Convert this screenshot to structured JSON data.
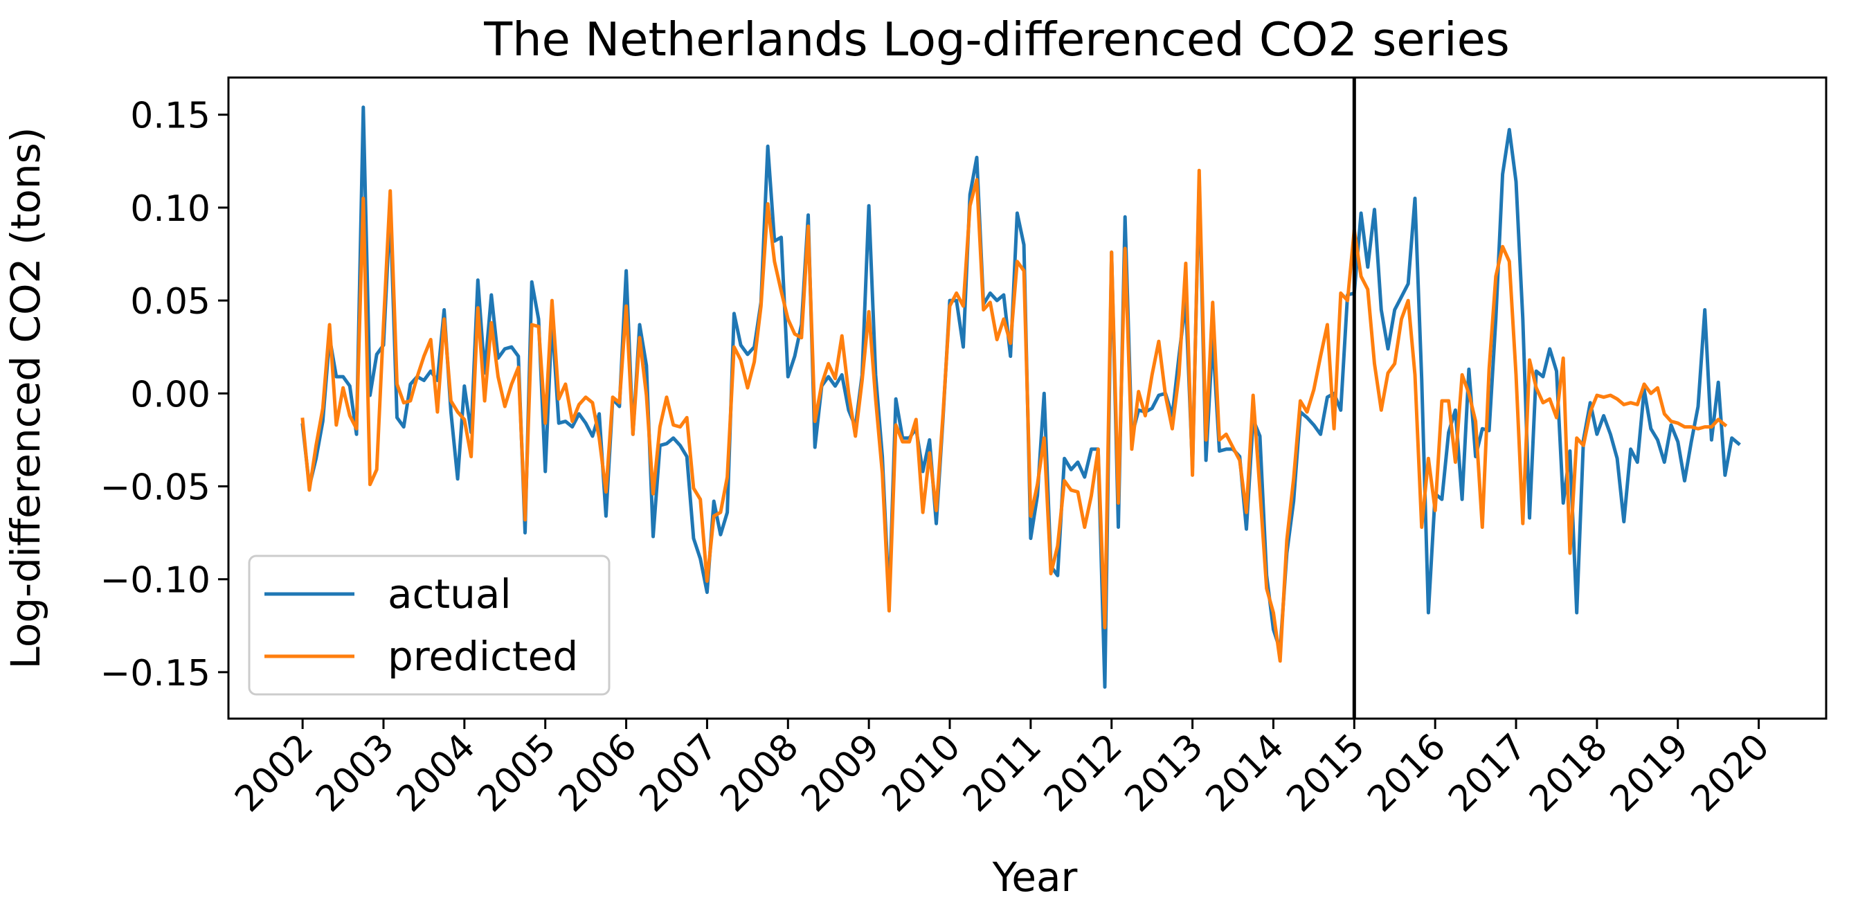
{
  "chart_data": {
    "type": "line",
    "title": "The Netherlands Log-differenced CO2 series",
    "xlabel": "Year",
    "ylabel": "Log-differenced CO2 (tons)",
    "x_start": "2002-01",
    "x_frequency": "monthly",
    "x_ticks": [
      "2002",
      "2003",
      "2004",
      "2005",
      "2006",
      "2007",
      "2008",
      "2009",
      "2010",
      "2011",
      "2012",
      "2013",
      "2014",
      "2015",
      "2016",
      "2017",
      "2018",
      "2019",
      "2020"
    ],
    "xlim": [
      "2001-02",
      "2020-11"
    ],
    "y_ticks": [
      {
        "value": 0.15,
        "label": "0.15"
      },
      {
        "value": 0.1,
        "label": "0.10"
      },
      {
        "value": 0.05,
        "label": "0.05"
      },
      {
        "value": 0.0,
        "label": "0.00"
      },
      {
        "value": -0.05,
        "label": "−0.05"
      },
      {
        "value": -0.1,
        "label": "−0.10"
      },
      {
        "value": -0.15,
        "label": "−0.15"
      }
    ],
    "ylim": [
      -0.175,
      0.17
    ],
    "grid": false,
    "legend_position": "lower-left",
    "vertical_line": {
      "x": "2015-01",
      "color": "#000000"
    },
    "series": [
      {
        "name": "actual",
        "color": "#1f77b4",
        "values": [
          -0.017,
          -0.05,
          -0.035,
          -0.015,
          0.03,
          0.009,
          0.009,
          0.004,
          -0.022,
          0.154,
          -0.001,
          0.021,
          0.026,
          0.099,
          -0.013,
          -0.018,
          0.005,
          0.009,
          0.007,
          0.012,
          0.007,
          0.045,
          -0.01,
          -0.046,
          0.004,
          -0.021,
          0.061,
          0.011,
          0.053,
          0.019,
          0.024,
          0.025,
          0.02,
          -0.075,
          0.06,
          0.04,
          -0.042,
          0.04,
          -0.016,
          -0.015,
          -0.018,
          -0.011,
          -0.016,
          -0.023,
          -0.011,
          -0.066,
          -0.003,
          -0.007,
          0.066,
          -0.022,
          0.037,
          0.015,
          -0.077,
          -0.028,
          -0.027,
          -0.024,
          -0.028,
          -0.034,
          -0.078,
          -0.089,
          -0.107,
          -0.058,
          -0.076,
          -0.064,
          0.043,
          0.026,
          0.021,
          0.025,
          0.049,
          0.133,
          0.082,
          0.084,
          0.009,
          0.02,
          0.037,
          0.096,
          -0.029,
          0.004,
          0.009,
          0.004,
          0.01,
          -0.009,
          -0.018,
          0.01,
          0.101,
          0.01,
          -0.034,
          -0.112,
          -0.003,
          -0.024,
          -0.024,
          -0.019,
          -0.042,
          -0.025,
          -0.07,
          -0.013,
          0.05,
          0.05,
          0.025,
          0.107,
          0.127,
          0.048,
          0.054,
          0.05,
          0.053,
          0.02,
          0.097,
          0.08,
          -0.078,
          -0.055,
          0.0,
          -0.093,
          -0.098,
          -0.035,
          -0.041,
          -0.037,
          -0.045,
          -0.03,
          -0.03,
          -0.158,
          0.076,
          -0.072,
          0.095,
          -0.023,
          -0.009,
          -0.01,
          -0.008,
          -0.001,
          0.0,
          -0.012,
          0.02,
          0.05,
          -0.04,
          0.115,
          -0.036,
          0.03,
          -0.031,
          -0.03,
          -0.03,
          -0.034,
          -0.073,
          -0.014,
          -0.023,
          -0.098,
          -0.127,
          -0.138,
          -0.086,
          -0.058,
          -0.01,
          -0.013,
          -0.017,
          -0.022,
          -0.002,
          0.0,
          -0.009,
          0.053,
          0.054,
          0.097,
          0.068,
          0.099,
          0.045,
          0.024,
          0.045,
          0.052,
          0.059,
          0.105,
          0.008,
          -0.118,
          -0.054,
          -0.057,
          -0.021,
          -0.009,
          -0.057,
          0.013,
          -0.034,
          -0.019,
          -0.02,
          0.04,
          0.118,
          0.142,
          0.114,
          0.04,
          -0.067,
          0.012,
          0.009,
          0.024,
          0.012,
          -0.059,
          -0.031,
          -0.118,
          -0.025,
          -0.005,
          -0.022,
          -0.012,
          -0.022,
          -0.035,
          -0.069,
          -0.03,
          -0.037,
          0.002,
          -0.019,
          -0.025,
          -0.037,
          -0.017,
          -0.026,
          -0.047,
          -0.026,
          -0.007,
          0.045,
          -0.025,
          0.006,
          -0.044,
          -0.024,
          -0.027
        ]
      },
      {
        "name": "predicted",
        "color": "#ff7f0e",
        "values": [
          -0.014,
          -0.052,
          -0.028,
          -0.008,
          0.037,
          -0.017,
          0.003,
          -0.012,
          -0.019,
          0.105,
          -0.049,
          -0.041,
          0.037,
          0.109,
          0.005,
          -0.005,
          -0.004,
          0.009,
          0.02,
          0.029,
          -0.01,
          0.04,
          -0.004,
          -0.01,
          -0.014,
          -0.034,
          0.046,
          -0.004,
          0.038,
          0.009,
          -0.007,
          0.005,
          0.014,
          -0.068,
          0.037,
          0.036,
          -0.016,
          0.05,
          -0.003,
          0.005,
          -0.015,
          -0.006,
          -0.002,
          -0.005,
          -0.024,
          -0.053,
          -0.002,
          -0.005,
          0.047,
          -0.022,
          0.03,
          -0.001,
          -0.054,
          -0.018,
          -0.002,
          -0.017,
          -0.018,
          -0.013,
          -0.051,
          -0.057,
          -0.101,
          -0.066,
          -0.064,
          -0.045,
          0.025,
          0.018,
          0.003,
          0.017,
          0.047,
          0.102,
          0.071,
          0.055,
          0.04,
          0.032,
          0.03,
          0.09,
          -0.015,
          0.005,
          0.016,
          0.008,
          0.031,
          0.0,
          -0.023,
          0.007,
          0.044,
          -0.003,
          -0.043,
          -0.117,
          -0.017,
          -0.026,
          -0.026,
          -0.014,
          -0.064,
          -0.032,
          -0.063,
          -0.011,
          0.047,
          0.054,
          0.047,
          0.101,
          0.115,
          0.045,
          0.049,
          0.029,
          0.04,
          0.027,
          0.071,
          0.066,
          -0.066,
          -0.049,
          -0.024,
          -0.097,
          -0.082,
          -0.047,
          -0.052,
          -0.053,
          -0.072,
          -0.055,
          -0.03,
          -0.126,
          0.076,
          -0.059,
          0.078,
          -0.03,
          0.001,
          -0.012,
          0.01,
          0.028,
          -0.001,
          -0.019,
          0.01,
          0.07,
          -0.044,
          0.12,
          -0.025,
          0.049,
          -0.025,
          -0.022,
          -0.029,
          -0.036,
          -0.064,
          -0.001,
          -0.052,
          -0.105,
          -0.118,
          -0.144,
          -0.079,
          -0.046,
          -0.004,
          -0.01,
          0.002,
          0.02,
          0.037,
          -0.019,
          0.054,
          0.05,
          0.088,
          0.063,
          0.056,
          0.016,
          -0.009,
          0.011,
          0.016,
          0.04,
          0.05,
          0.01,
          -0.072,
          -0.035,
          -0.063,
          -0.004,
          -0.004,
          -0.037,
          0.01,
          0.0,
          -0.015,
          -0.072,
          0.013,
          0.063,
          0.079,
          0.071,
          0.01,
          -0.07,
          0.018,
          0.003,
          -0.005,
          -0.003,
          -0.013,
          0.019,
          -0.086,
          -0.024,
          -0.028,
          -0.01,
          -0.001,
          -0.002,
          -0.001,
          -0.003,
          -0.006,
          -0.005,
          -0.006,
          0.005,
          0.0,
          0.003,
          -0.011,
          -0.015,
          -0.016,
          -0.018,
          -0.018,
          -0.019,
          -0.018,
          -0.018,
          -0.014,
          -0.017
        ]
      }
    ]
  }
}
